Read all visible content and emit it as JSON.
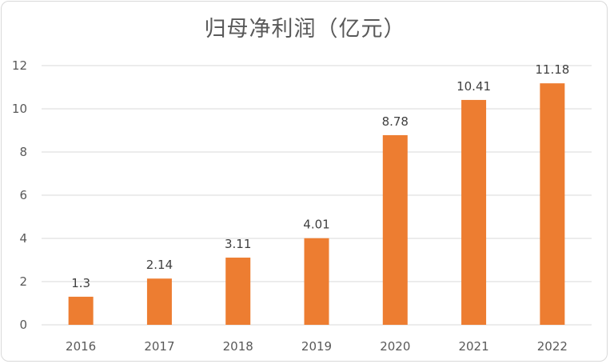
{
  "chart_data": {
    "type": "bar",
    "title": "归母净利润（亿元）",
    "categories": [
      "2016",
      "2017",
      "2018",
      "2019",
      "2020",
      "2021",
      "2022"
    ],
    "values": [
      1.3,
      2.14,
      3.11,
      4.01,
      8.78,
      10.41,
      11.18
    ],
    "value_labels": [
      "1.3",
      "2.14",
      "3.11",
      "4.01",
      "8.78",
      "10.41",
      "11.18"
    ],
    "xlabel": "",
    "ylabel": "",
    "ylim": [
      0,
      12
    ],
    "yticks": [
      "0",
      "2",
      "4",
      "6",
      "8",
      "10",
      "12"
    ],
    "grid": true,
    "legend": "none",
    "colors": {
      "bar": "#ED7D31",
      "grid": "#D9D9D9",
      "text": "#595959"
    }
  }
}
